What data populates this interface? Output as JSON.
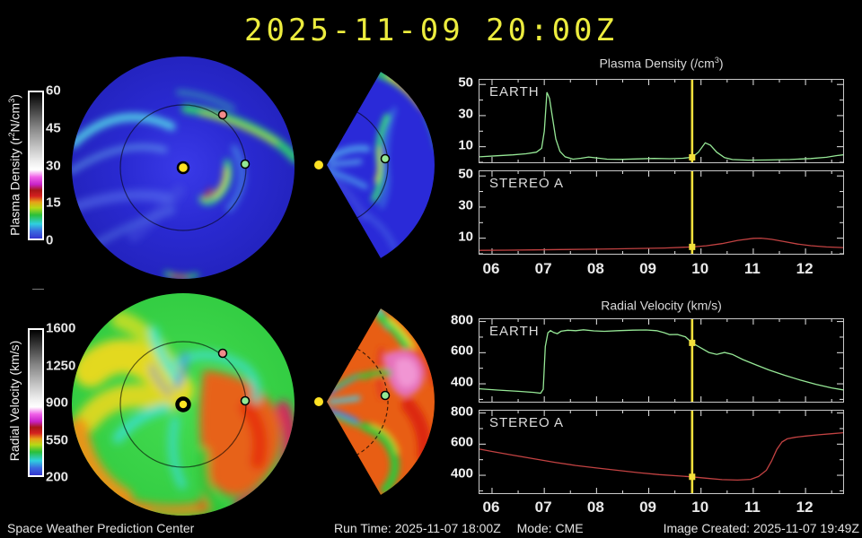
{
  "title": "2025-11-09 20:00Z",
  "dash_note": "—",
  "colormap": [
    [
      "0%",
      "#3535cf"
    ],
    [
      "5%",
      "#3a6ae0"
    ],
    [
      "10%",
      "#2fd0e0"
    ],
    [
      "16%",
      "#2abf3a"
    ],
    [
      "21%",
      "#b8d816"
    ],
    [
      "25%",
      "#e8a018"
    ],
    [
      "29%",
      "#d42020"
    ],
    [
      "33%",
      "#a81616"
    ],
    [
      "37%",
      "#c822c8"
    ],
    [
      "42%",
      "#f060e8"
    ],
    [
      "47%",
      "#ffffff"
    ],
    [
      "52%",
      "#f0f0f0"
    ],
    [
      "62%",
      "#c6c6c6"
    ],
    [
      "76%",
      "#858585"
    ],
    [
      "89%",
      "#3c3c3c"
    ],
    [
      "100%",
      "#000000"
    ]
  ],
  "colorbars": {
    "density": {
      "label_pre": "Plasma Density (r",
      "label_sup1": "2",
      "label_mid": "N/cm",
      "label_sup2": "3",
      "label_post": ")",
      "ticks": [
        "60",
        "45",
        "30",
        "15",
        "0"
      ]
    },
    "velocity": {
      "label": "Radial Velocity (km/s)",
      "ticks": [
        "1600",
        "1250",
        "900",
        "550",
        "200"
      ]
    }
  },
  "markers": {
    "sun": {
      "name": "Sun",
      "color": "#ffe224"
    },
    "earth": {
      "name": "Earth",
      "color": "#94e894"
    },
    "stereo_a": {
      "name": "STEREO A",
      "color": "#f28b8b"
    }
  },
  "footer": {
    "left": "Space Weather Prediction Center",
    "run_time": "Run Time: 2025-11-07 18:00Z",
    "mode": "Mode: CME",
    "created": "Image Created: 2025-11-07 19:49Z"
  },
  "chart_data": [
    {
      "id": "density",
      "type": "line",
      "title_pre": "Plasma Density (/cm",
      "title_sup": "3",
      "title_post": ")",
      "x_ticks": [
        "06",
        "07",
        "08",
        "09",
        "10",
        "11",
        "12"
      ],
      "x_tick_values": [
        6,
        7,
        8,
        9,
        10,
        11,
        12
      ],
      "x_range": [
        5.76,
        12.72
      ],
      "y_range": [
        0,
        53
      ],
      "y_ticks": [
        10,
        30,
        50
      ],
      "y_minor": 10,
      "now_x": 9.83,
      "now_color": "#f2e03c",
      "panels": [
        {
          "label": "EARTH",
          "color": "#96e896",
          "points": [
            [
              5.76,
              3.5
            ],
            [
              6.1,
              4.2
            ],
            [
              6.4,
              4.8
            ],
            [
              6.65,
              5.5
            ],
            [
              6.85,
              6.5
            ],
            [
              6.95,
              9
            ],
            [
              7.0,
              20
            ],
            [
              7.05,
              45
            ],
            [
              7.1,
              41
            ],
            [
              7.16,
              28
            ],
            [
              7.22,
              15
            ],
            [
              7.3,
              7
            ],
            [
              7.4,
              3.5
            ],
            [
              7.55,
              2
            ],
            [
              7.7,
              2.6
            ],
            [
              7.85,
              3.4
            ],
            [
              8.0,
              2.8
            ],
            [
              8.2,
              2
            ],
            [
              8.5,
              1.9
            ],
            [
              8.8,
              2.2
            ],
            [
              9.1,
              2.5
            ],
            [
              9.4,
              2.3
            ],
            [
              9.65,
              2.6
            ],
            [
              9.83,
              3.2
            ],
            [
              9.95,
              6.5
            ],
            [
              10.08,
              12.5
            ],
            [
              10.18,
              11
            ],
            [
              10.3,
              6.5
            ],
            [
              10.45,
              3
            ],
            [
              10.6,
              1.8
            ],
            [
              10.9,
              1.4
            ],
            [
              11.3,
              1.5
            ],
            [
              11.7,
              1.8
            ],
            [
              12.1,
              2.4
            ],
            [
              12.4,
              3.2
            ],
            [
              12.6,
              4.3
            ],
            [
              12.72,
              4.8
            ]
          ]
        },
        {
          "label": "STEREO A",
          "color": "#c24242",
          "points": [
            [
              5.76,
              2.2
            ],
            [
              6.3,
              2.3
            ],
            [
              6.8,
              2.5
            ],
            [
              7.3,
              2.7
            ],
            [
              7.8,
              2.9
            ],
            [
              8.3,
              3.1
            ],
            [
              8.8,
              3.4
            ],
            [
              9.3,
              3.7
            ],
            [
              9.83,
              4.4
            ],
            [
              10.1,
              5.1
            ],
            [
              10.4,
              6.5
            ],
            [
              10.7,
              8.6
            ],
            [
              11.0,
              9.9
            ],
            [
              11.15,
              10
            ],
            [
              11.35,
              9.3
            ],
            [
              11.6,
              7.8
            ],
            [
              11.85,
              6.2
            ],
            [
              12.1,
              5.2
            ],
            [
              12.4,
              4.4
            ],
            [
              12.72,
              4
            ]
          ]
        }
      ]
    },
    {
      "id": "velocity",
      "type": "line",
      "title_pre": "Radial Velocity (km/s)",
      "title_sup": "",
      "title_post": "",
      "x_ticks": [
        "06",
        "07",
        "08",
        "09",
        "10",
        "11",
        "12"
      ],
      "x_tick_values": [
        6,
        7,
        8,
        9,
        10,
        11,
        12
      ],
      "x_range": [
        5.76,
        12.72
      ],
      "y_range": [
        285,
        815
      ],
      "y_ticks": [
        400,
        600,
        800
      ],
      "y_minor": 100,
      "now_x": 9.83,
      "now_color": "#f2e03c",
      "panels": [
        {
          "label": "EARTH",
          "color": "#96e896",
          "points": [
            [
              5.76,
              368
            ],
            [
              6.1,
              360
            ],
            [
              6.5,
              352
            ],
            [
              6.8,
              345
            ],
            [
              6.93,
              340
            ],
            [
              6.98,
              365
            ],
            [
              7.02,
              640
            ],
            [
              7.07,
              728
            ],
            [
              7.12,
              742
            ],
            [
              7.18,
              730
            ],
            [
              7.25,
              722
            ],
            [
              7.32,
              738
            ],
            [
              7.45,
              744
            ],
            [
              7.6,
              741
            ],
            [
              7.75,
              747
            ],
            [
              7.95,
              740
            ],
            [
              8.15,
              737
            ],
            [
              8.4,
              741
            ],
            [
              8.7,
              745
            ],
            [
              8.95,
              746
            ],
            [
              9.15,
              741
            ],
            [
              9.3,
              728
            ],
            [
              9.4,
              716
            ],
            [
              9.55,
              717
            ],
            [
              9.7,
              702
            ],
            [
              9.83,
              663
            ],
            [
              10.0,
              630
            ],
            [
              10.15,
              601
            ],
            [
              10.3,
              589
            ],
            [
              10.45,
              601
            ],
            [
              10.6,
              589
            ],
            [
              10.8,
              556
            ],
            [
              11.05,
              522
            ],
            [
              11.3,
              489
            ],
            [
              11.6,
              455
            ],
            [
              11.9,
              424
            ],
            [
              12.2,
              397
            ],
            [
              12.5,
              374
            ],
            [
              12.72,
              361
            ]
          ]
        },
        {
          "label": "STEREO A",
          "color": "#c24242",
          "points": [
            [
              5.76,
              568
            ],
            [
              6.0,
              553
            ],
            [
              6.4,
              529
            ],
            [
              6.8,
              506
            ],
            [
              7.2,
              483
            ],
            [
              7.6,
              463
            ],
            [
              8.0,
              447
            ],
            [
              8.4,
              432
            ],
            [
              8.8,
              417
            ],
            [
              9.2,
              404
            ],
            [
              9.6,
              395
            ],
            [
              9.83,
              390
            ],
            [
              10.1,
              381
            ],
            [
              10.4,
              372
            ],
            [
              10.7,
              369
            ],
            [
              10.95,
              374
            ],
            [
              11.1,
              392
            ],
            [
              11.25,
              432
            ],
            [
              11.35,
              492
            ],
            [
              11.45,
              566
            ],
            [
              11.55,
              614
            ],
            [
              11.65,
              634
            ],
            [
              11.8,
              644
            ],
            [
              12.0,
              652
            ],
            [
              12.25,
              660
            ],
            [
              12.5,
              667
            ],
            [
              12.72,
              673
            ]
          ]
        }
      ]
    }
  ]
}
